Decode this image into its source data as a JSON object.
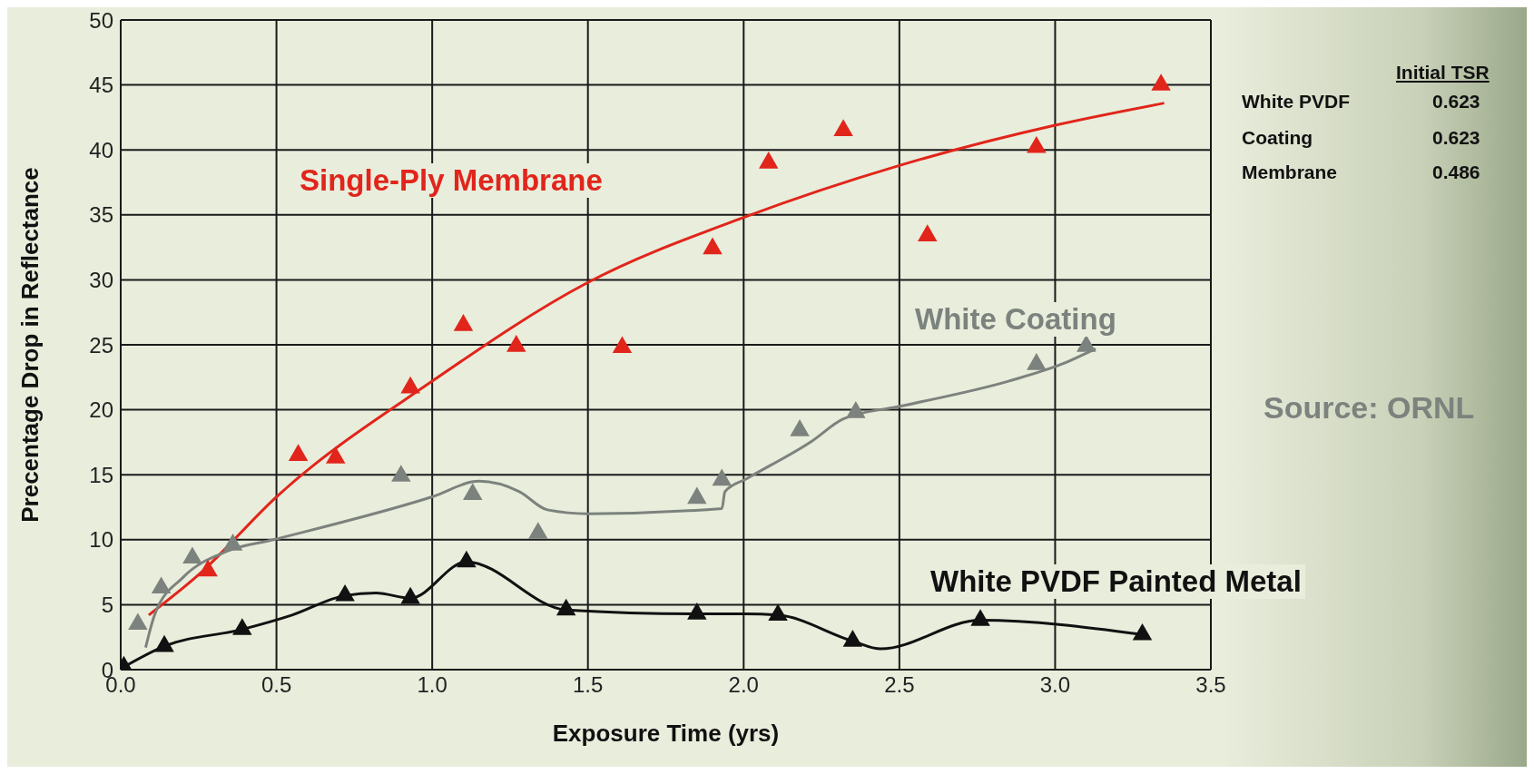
{
  "chart_data": {
    "type": "scatter",
    "xlabel": "Exposure Time (yrs)",
    "ylabel": "Precentage Drop in Reflectance",
    "xlim": [
      0,
      3.5
    ],
    "xticks": [
      {
        "value": 0,
        "label": "0.0"
      },
      0.5,
      {
        "value": 1,
        "label": "1.0"
      },
      1.5,
      {
        "value": 2,
        "label": "2.0"
      },
      2.5,
      {
        "value": 3,
        "label": "3.0"
      },
      3.5
    ],
    "ylim": [
      0,
      50
    ],
    "yticks": [
      0,
      5,
      10,
      15,
      20,
      25,
      30,
      35,
      40,
      45,
      50
    ],
    "grid": true,
    "legend": false,
    "marker": "triangle",
    "line_style": "solid",
    "series": [
      {
        "name": "Single-Ply Membrane",
        "color": "#e1251b",
        "x": [
          0.28,
          0.57,
          0.69,
          0.93,
          1.1,
          1.27,
          1.61,
          1.9,
          2.08,
          2.32,
          2.59,
          2.94,
          3.34
        ],
        "values": [
          7.6,
          16.5,
          16.3,
          21.7,
          26.5,
          24.9,
          24.8,
          32.4,
          39.0,
          41.5,
          33.4,
          40.2,
          45.0
        ]
      },
      {
        "type": "line",
        "marker": "none",
        "color": "#e1251b",
        "x": [
          0.09,
          0.25,
          0.5,
          1.0,
          1.5,
          2.0,
          2.5,
          3.0,
          3.35
        ],
        "values": [
          4.2,
          7.3,
          13.3,
          22.2,
          29.8,
          34.8,
          38.8,
          41.9,
          43.6
        ]
      },
      {
        "name": "White Coating",
        "color": "#7c827d",
        "x": [
          0.055,
          0.13,
          0.23,
          0.36,
          0.9,
          1.13,
          1.34,
          1.85,
          1.93,
          2.18,
          2.36,
          2.94,
          3.1
        ],
        "values": [
          3.5,
          6.3,
          8.6,
          9.6,
          14.9,
          13.5,
          10.5,
          13.2,
          14.6,
          18.4,
          19.8,
          23.5,
          24.9
        ]
      },
      {
        "type": "line",
        "marker": "none",
        "color": "#7c827d",
        "x": [
          0.08,
          0.11,
          0.2,
          0.34,
          0.49,
          1.0,
          1.15,
          1.28,
          1.37,
          1.5,
          1.93,
          1.94,
          2.01,
          2.22,
          2.32,
          2.51,
          2.85,
          3.02,
          3.13
        ],
        "values": [
          1.7,
          4.3,
          7.1,
          9.1,
          10.0,
          13.3,
          14.5,
          13.7,
          12.3,
          12.0,
          12.4,
          13.7,
          14.7,
          17.6,
          19.3,
          20.3,
          22.2,
          23.5,
          24.7
        ]
      },
      {
        "name": "White PVDF Painted Metal",
        "color": "#111111",
        "x": [
          0.01,
          0.14,
          0.39,
          0.72,
          0.93,
          1.11,
          1.43,
          1.85,
          2.11,
          2.35,
          2.76,
          3.28
        ],
        "values": [
          0.2,
          1.8,
          3.1,
          5.7,
          5.5,
          8.3,
          4.6,
          4.3,
          4.2,
          2.2,
          3.8,
          2.7
        ]
      },
      {
        "type": "line",
        "marker": "none",
        "color": "#111111",
        "x": [
          0.01,
          0.14,
          0.39,
          0.55,
          0.72,
          0.82,
          0.93,
          1.11,
          1.43,
          1.85,
          2.0,
          2.11,
          2.35,
          2.44,
          2.76,
          3.28
        ],
        "values": [
          0.2,
          1.8,
          3.1,
          4.2,
          5.7,
          5.9,
          5.5,
          8.3,
          4.6,
          4.3,
          4.3,
          4.2,
          2.2,
          1.6,
          3.8,
          2.7
        ]
      }
    ],
    "annotations": [
      "Initial TSR",
      "White PVDF",
      "0.623",
      "Coating",
      "0.623",
      "Membrane",
      "0.486",
      "Source: ORNL"
    ]
  }
}
